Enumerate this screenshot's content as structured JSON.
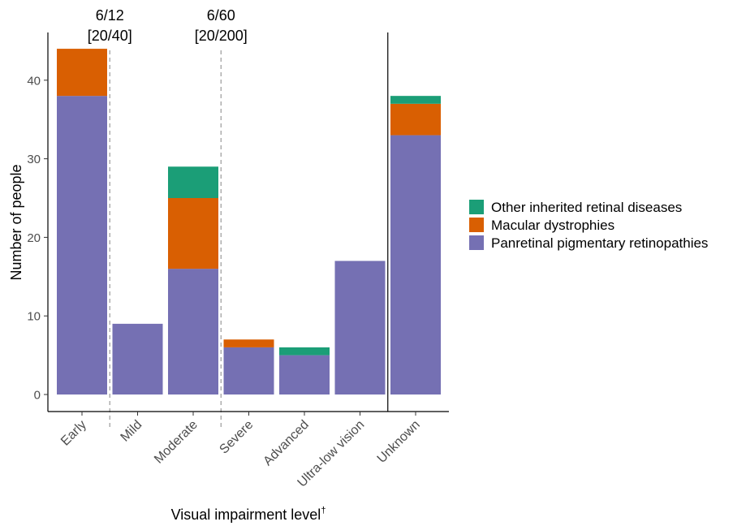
{
  "chart_data": {
    "type": "bar",
    "stacked": true,
    "categories": [
      "Early",
      "Mild",
      "Moderate",
      "Severe",
      "Advanced",
      "Ultra-low vision",
      "Unknown"
    ],
    "series": [
      {
        "name": "Panretinal pigmentary retinopathies",
        "color": "#7570B3",
        "values": [
          38,
          9,
          16,
          6,
          5,
          17,
          33
        ]
      },
      {
        "name": "Macular dystrophies",
        "color": "#D95F02",
        "values": [
          6,
          0,
          9,
          1,
          0,
          0,
          4
        ]
      },
      {
        "name": "Other inherited retinal diseases",
        "color": "#1B9E77",
        "values": [
          0,
          0,
          4,
          0,
          1,
          0,
          1
        ]
      }
    ],
    "legend_order": [
      2,
      1,
      0
    ],
    "legend_position": "right",
    "xlabel": "Visual impairment level",
    "xlabel_superscript": "†",
    "ylabel": "Number of people",
    "ylim": [
      0,
      44
    ],
    "yticks": [
      0,
      10,
      20,
      30,
      40
    ],
    "grid": false,
    "reference_lines": [
      {
        "between": [
          0,
          1
        ],
        "style": "dashed",
        "label_lines": [
          "6/12",
          "[20/40]"
        ]
      },
      {
        "between": [
          2,
          3
        ],
        "style": "dashed",
        "label_lines": [
          "6/60",
          "[20/200]"
        ]
      },
      {
        "between": [
          5,
          6
        ],
        "style": "solid",
        "label_lines": []
      }
    ]
  }
}
